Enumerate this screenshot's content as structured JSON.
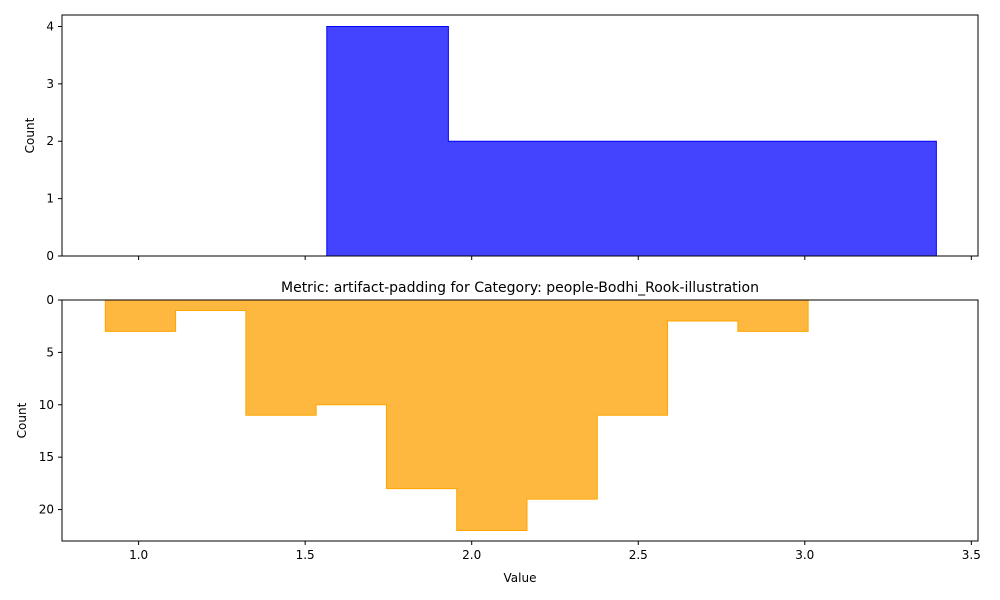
{
  "chart_data": [
    {
      "type": "area",
      "subtype": "step-histogram",
      "title": "",
      "xlabel": "",
      "ylabel": "Count",
      "xlim": [
        0.77,
        3.52
      ],
      "ylim": [
        0,
        4.2
      ],
      "y_inverted": false,
      "xticks": [
        1.0,
        1.5,
        2.0,
        2.5,
        3.0,
        3.5
      ],
      "xtick_labels_visible": false,
      "yticks": [
        0,
        1,
        2,
        3,
        4
      ],
      "yticks_labels": [
        "0",
        "1",
        "2",
        "3",
        "4"
      ],
      "grid": false,
      "legend": "none",
      "color": "#0000ff",
      "fill_color": "#4444ff",
      "bins": [
        {
          "x0": 1.565,
          "x1": 1.93,
          "count": 4
        },
        {
          "x0": 1.93,
          "x1": 3.395,
          "count": 2
        }
      ]
    },
    {
      "type": "area",
      "subtype": "step-histogram",
      "title": "Metric: artifact-padding for Category: people-Bodhi_Rook-illustration",
      "xlabel": "Value",
      "ylabel": "Count",
      "xlim": [
        0.77,
        3.52
      ],
      "ylim": [
        0,
        23
      ],
      "y_inverted": true,
      "xticks": [
        1.0,
        1.5,
        2.0,
        2.5,
        3.0,
        3.5
      ],
      "xticks_labels": [
        "1.0",
        "1.5",
        "2.0",
        "2.5",
        "3.0",
        "3.5"
      ],
      "yticks": [
        0,
        5,
        10,
        15,
        20
      ],
      "yticks_labels": [
        "0",
        "5",
        "10",
        "15",
        "20"
      ],
      "grid": false,
      "legend": "none",
      "color": "#ffa500",
      "fill_color": "#ffb83f",
      "bins": [
        {
          "x0": 0.9,
          "x1": 1.111,
          "count": 3
        },
        {
          "x0": 1.111,
          "x1": 1.322,
          "count": 1
        },
        {
          "x0": 1.322,
          "x1": 1.533,
          "count": 11
        },
        {
          "x0": 1.533,
          "x1": 1.744,
          "count": 10
        },
        {
          "x0": 1.744,
          "x1": 1.955,
          "count": 18
        },
        {
          "x0": 1.955,
          "x1": 2.166,
          "count": 22
        },
        {
          "x0": 2.166,
          "x1": 2.377,
          "count": 19
        },
        {
          "x0": 2.377,
          "x1": 2.588,
          "count": 11
        },
        {
          "x0": 2.588,
          "x1": 2.799,
          "count": 2
        },
        {
          "x0": 2.799,
          "x1": 3.01,
          "count": 3
        }
      ]
    }
  ]
}
